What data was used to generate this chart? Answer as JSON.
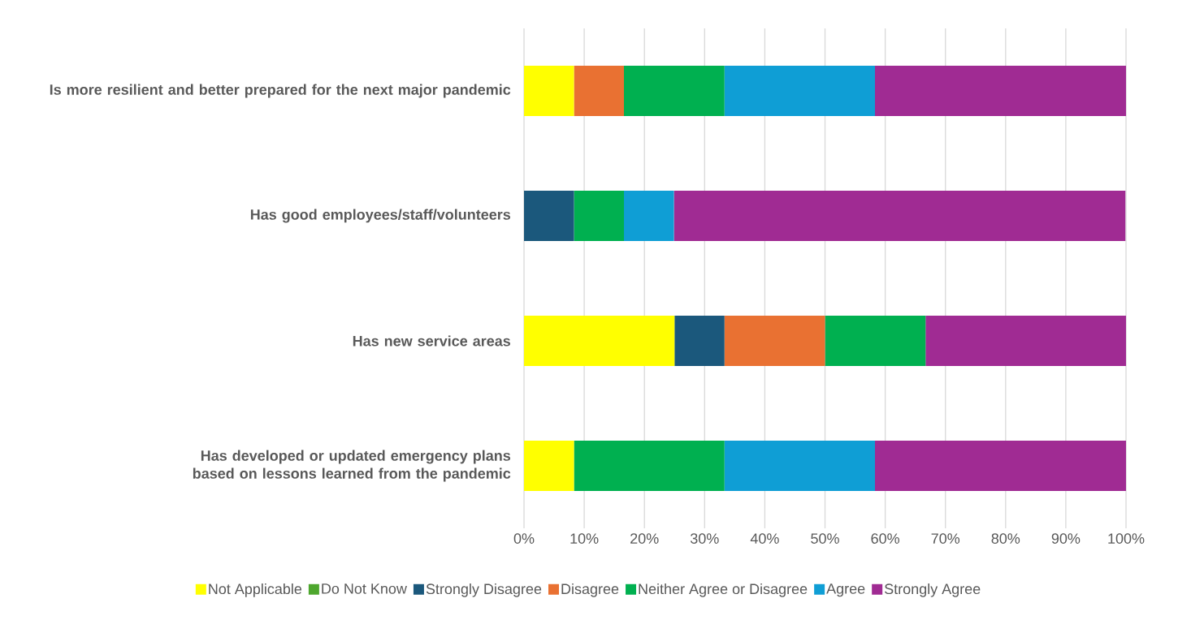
{
  "chart_data": {
    "type": "bar",
    "orientation": "horizontal",
    "stacked": true,
    "categories": [
      "Is more resilient and better prepared for the next major pandemic",
      "Has good employees/staff/volunteers",
      "Has new service areas",
      "Has developed or updated emergency plans based on lessons learned from the pandemic"
    ],
    "series": [
      {
        "name": "Not Applicable",
        "color": "#ffff00",
        "values": [
          8.3,
          null,
          25,
          8.3
        ]
      },
      {
        "name": "Do Not Know",
        "color": "#4ea72e",
        "values": [
          null,
          null,
          null,
          null
        ]
      },
      {
        "name": "Strongly Disagree",
        "color": "#1b587c",
        "values": [
          null,
          8.3,
          8.3,
          null
        ]
      },
      {
        "name": "Disagree",
        "color": "#e97132",
        "values": [
          8.3,
          null,
          16.7,
          null
        ]
      },
      {
        "name": "Neither Agree or Disagree",
        "color": "#00b050",
        "values": [
          16.7,
          8.3,
          16.7,
          25
        ]
      },
      {
        "name": "Agree",
        "color": "#0f9ed5",
        "values": [
          25,
          8.3,
          null,
          25
        ]
      },
      {
        "name": "Strongly Agree",
        "color": "#a02b93",
        "values": [
          41.7,
          75,
          33.3,
          41.7
        ]
      }
    ],
    "xlim": [
      0,
      100
    ],
    "xticks": [
      {
        "value": 0,
        "label": "0%"
      },
      {
        "value": 10,
        "label": "10%"
      },
      {
        "value": 20,
        "label": "20%"
      },
      {
        "value": 30,
        "label": "30%"
      },
      {
        "value": 40,
        "label": "40%"
      },
      {
        "value": 50,
        "label": "50%"
      },
      {
        "value": 60,
        "label": "60%"
      },
      {
        "value": 70,
        "label": "70%"
      },
      {
        "value": 80,
        "label": "80%"
      },
      {
        "value": 90,
        "label": "90%"
      },
      {
        "value": 100,
        "label": "100%"
      }
    ],
    "grid": "x",
    "legend": "bottom"
  }
}
